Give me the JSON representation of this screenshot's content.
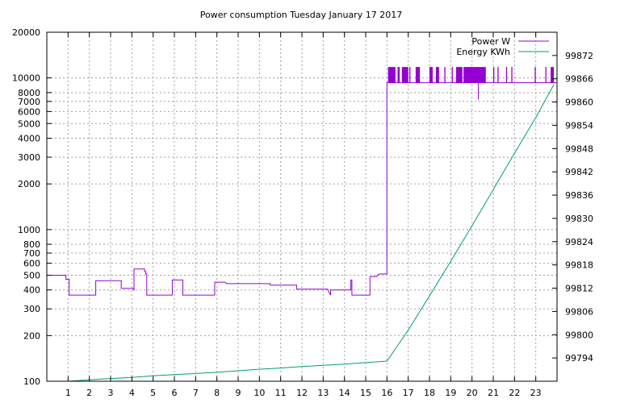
{
  "chart_data": {
    "type": "line",
    "title": "Power consumption Tuesday January 17 2017",
    "xlabel": "",
    "ylabel": "",
    "x_range": [
      0,
      24
    ],
    "x_ticks": [
      1,
      2,
      3,
      4,
      5,
      6,
      7,
      8,
      9,
      10,
      11,
      12,
      13,
      14,
      15,
      16,
      17,
      18,
      19,
      20,
      21,
      22,
      23
    ],
    "y_scale": "log",
    "y_range": [
      100,
      20000
    ],
    "y_ticks": [
      100,
      200,
      300,
      400,
      500,
      600,
      700,
      800,
      1000,
      2000,
      3000,
      4000,
      5000,
      6000,
      7000,
      8000,
      10000,
      20000
    ],
    "y2_range": [
      99788,
      99878
    ],
    "y2_ticks": [
      99794,
      99800,
      99806,
      99812,
      99818,
      99824,
      99830,
      99836,
      99842,
      99848,
      99854,
      99860,
      99866,
      99872
    ],
    "grid": true,
    "legend_position": "top-right",
    "series": [
      {
        "name": "Power W",
        "axis": "y",
        "color": "#9400d3",
        "x": [
          0,
          0.9,
          0.9,
          1.05,
          1.05,
          1.25,
          1.25,
          2.3,
          2.3,
          2.45,
          2.45,
          3.5,
          3.5,
          4.05,
          4.05,
          4.1,
          4.1,
          4.6,
          4.6,
          4.65,
          4.65,
          4.7,
          4.7,
          5.9,
          5.9,
          6.4,
          6.4,
          7.9,
          7.9,
          8.4,
          8.4,
          8.45,
          8.45,
          10.5,
          10.5,
          11.75,
          11.75,
          13.2,
          13.2,
          13.35,
          13.35,
          14.3,
          14.3,
          14.35,
          14.35,
          14.45,
          14.45,
          15.2,
          15.2,
          15.5,
          15.5,
          15.6,
          15.6,
          15.65,
          15.65,
          16.0,
          16.0,
          24
        ],
        "y": [
          500,
          500,
          470,
          470,
          370,
          370,
          370,
          370,
          460,
          460,
          460,
          460,
          410,
          410,
          410,
          400,
          550,
          550,
          530,
          530,
          510,
          510,
          370,
          370,
          465,
          465,
          370,
          370,
          450,
          450,
          450,
          440,
          440,
          440,
          430,
          430,
          405,
          405,
          405,
          370,
          400,
          400,
          465,
          465,
          370,
          370,
          370,
          370,
          490,
          490,
          490,
          505,
          505,
          510,
          510,
          510,
          9300,
          9300
        ],
        "spikes": {
          "baseline": 9300,
          "top": 11800,
          "low_values": [
            {
              "x": 20.3,
              "y": 7200
            }
          ],
          "dense_ranges": [
            [
              16.05,
              16.4
            ],
            [
              16.5,
              16.6
            ],
            [
              16.7,
              17.0
            ],
            [
              17.05,
              17.1
            ],
            [
              17.35,
              17.55
            ],
            [
              18.0,
              18.15
            ],
            [
              18.3,
              18.45
            ],
            [
              18.7,
              18.75
            ],
            [
              19.05,
              19.1
            ],
            [
              19.25,
              19.55
            ],
            [
              19.6,
              20.65
            ],
            [
              21.0,
              21.05
            ],
            [
              21.2,
              21.25
            ],
            [
              21.6,
              21.65
            ],
            [
              21.85,
              21.9
            ],
            [
              22.95,
              23.0
            ],
            [
              23.45,
              23.5
            ],
            [
              23.7,
              23.85
            ]
          ]
        }
      },
      {
        "name": "Energy KWh",
        "axis": "y2",
        "color": "#009e73",
        "x": [
          1,
          2,
          3,
          4,
          5,
          6,
          7,
          8,
          9,
          10,
          11,
          12,
          13,
          14,
          15,
          16,
          17,
          18,
          19,
          20,
          21,
          22,
          23,
          23.85
        ],
        "y": [
          99788.0,
          99788.35,
          99788.7,
          99789.0,
          99789.4,
          99789.7,
          99790.0,
          99790.3,
          99790.7,
          99791.1,
          99791.4,
          99791.8,
          99792.1,
          99792.4,
          99792.8,
          99793.2,
          99801.2,
          99810.0,
          99818.9,
          99828.1,
          99837.4,
          99846.8,
          99856.0,
          99864.5
        ]
      }
    ]
  }
}
